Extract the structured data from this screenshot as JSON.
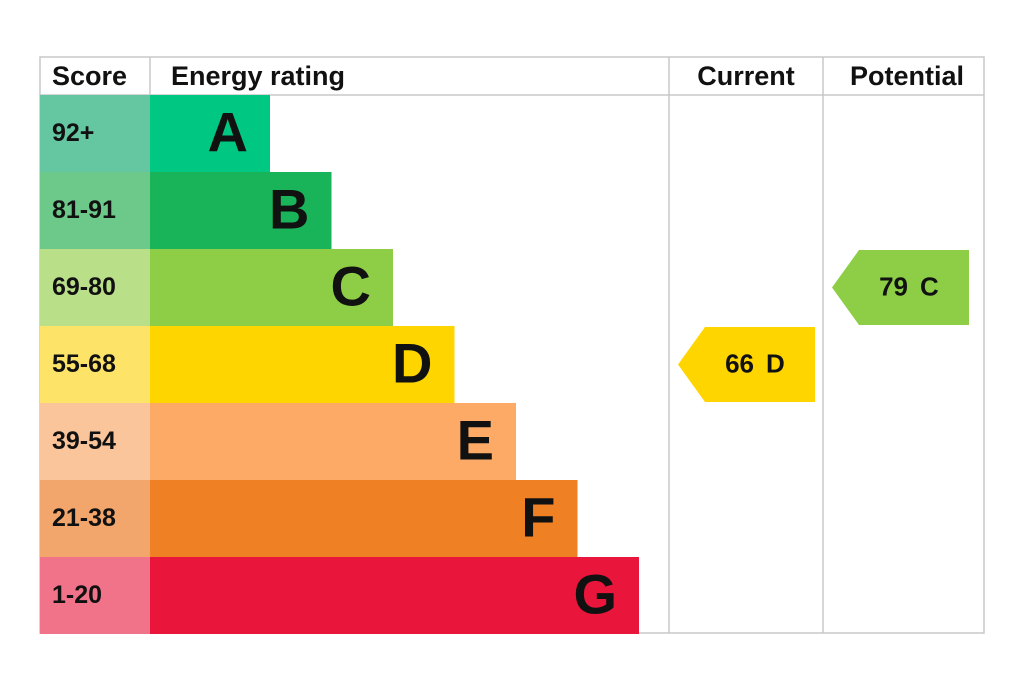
{
  "chart_data": {
    "type": "epc",
    "headers": [
      "Score",
      "Energy rating",
      "Current",
      "Potential"
    ],
    "bands": [
      {
        "score": "92+",
        "letter": "A",
        "color": "#00c781",
        "score_color": "#64c7a1"
      },
      {
        "score": "81-91",
        "letter": "B",
        "color": "#19b459",
        "score_color": "#6cc98a"
      },
      {
        "score": "69-80",
        "letter": "C",
        "color": "#8dce46",
        "score_color": "#b9e089"
      },
      {
        "score": "55-68",
        "letter": "D",
        "color": "#ffd500",
        "score_color": "#fde469"
      },
      {
        "score": "39-54",
        "letter": "E",
        "color": "#fcaa65",
        "score_color": "#fbc59b"
      },
      {
        "score": "21-38",
        "letter": "F",
        "color": "#ef8023",
        "score_color": "#f2a66b"
      },
      {
        "score": "1-20",
        "letter": "G",
        "color": "#e9153b",
        "score_color": "#f07389"
      }
    ],
    "current": {
      "value": 66,
      "letter": "D"
    },
    "potential": {
      "value": 79,
      "letter": "C"
    }
  }
}
